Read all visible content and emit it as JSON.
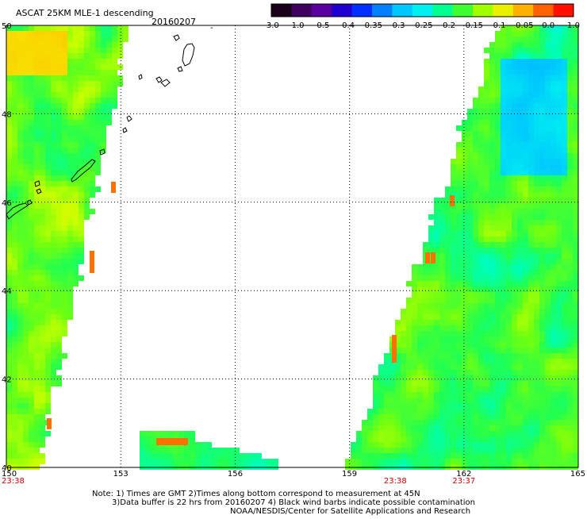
{
  "header": {
    "title": "ASCAT 25KM MLE-1 descending",
    "date": "20160207",
    "small_mark": "-"
  },
  "colorbar": {
    "labels": [
      "-3.0",
      "-1.0",
      "-0.5",
      "-0.4",
      "-0.35",
      "-0.3",
      "-0.25",
      "-0.2",
      "-0.15",
      "-0.1",
      "-0.05",
      "0.0",
      "1.0"
    ],
    "colors": [
      "#1a001a",
      "#400060",
      "#5a00a0",
      "#2000d0",
      "#0030ff",
      "#0080ff",
      "#00c8ff",
      "#00f0f0",
      "#00ff90",
      "#40ff30",
      "#a0ff00",
      "#e8f000",
      "#ffb000",
      "#ff6000",
      "#ff1000"
    ]
  },
  "footer": {
    "note_line1": "Note: 1) Times are GMT 2)Times along bottom correspond to measurement at 45N",
    "note_line2": "3)Data buffer is 22 hrs from 20160207 4) Black wind barbs indicate possible contamination",
    "note_line3": "NOAA/NESDIS/Center for Satellite Applications and Research"
  },
  "chart_data": {
    "type": "heatmap",
    "title": "ASCAT 25KM MLE-1 descending 20160207",
    "x_ticks": [
      "150",
      "153",
      "156",
      "159",
      "162",
      "165"
    ],
    "y_ticks": [
      "40",
      "42",
      "44",
      "46",
      "48",
      "50"
    ],
    "xlim": [
      150,
      165
    ],
    "ylim": [
      40,
      50
    ],
    "grid": true,
    "grid_style": "dotted",
    "pass_times": [
      {
        "lon": 150,
        "time": "23:38"
      },
      {
        "lon": 160.2,
        "time": "23:38"
      },
      {
        "lon": 162,
        "time": "23:37"
      }
    ],
    "time_color": "#cc0000",
    "value_range": [
      -3.0,
      1.0
    ],
    "swaths": [
      {
        "name": "west swath",
        "lon_west_edge": 150.0,
        "lon_east_edge_at_lat40": 150.9,
        "lon_east_edge_at_lat50": 153.2,
        "dominant_values": [
          -0.25,
          -0.15,
          -0.1
        ]
      },
      {
        "name": "east swath",
        "lon_west_edge_at_lat40": 158.9,
        "lon_west_edge_at_lat50": 162.9,
        "lon_east_edge": 165.0,
        "dominant_values": [
          -0.3,
          -0.2,
          -0.15
        ]
      },
      {
        "name": "south fragment",
        "lat_range": [
          40.0,
          40.8
        ],
        "lon_range": [
          153.5,
          157.2
        ],
        "dominant_values": [
          -0.3,
          -0.2,
          0.0
        ]
      }
    ]
  }
}
